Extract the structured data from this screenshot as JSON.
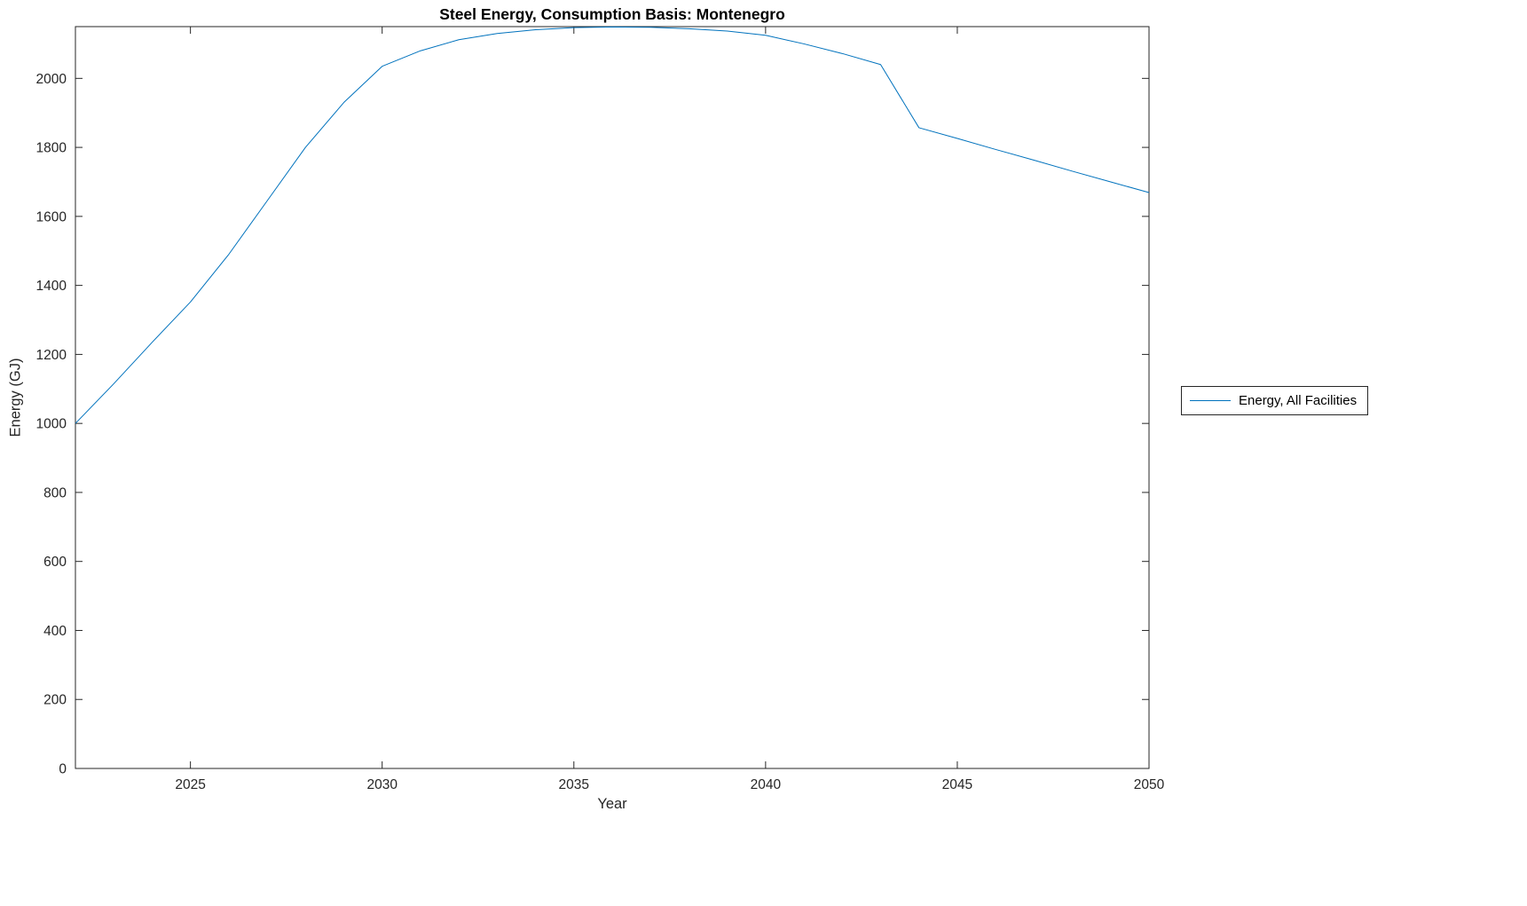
{
  "figure": {
    "background": "#ffffff"
  },
  "chart_data": {
    "type": "line",
    "title": "Steel Energy, Consumption Basis: Montenegro",
    "xlabel": "Year",
    "ylabel": "Energy (GJ)",
    "xlim": [
      2022,
      2050
    ],
    "ylim": [
      0,
      2150
    ],
    "xticks": [
      2025,
      2030,
      2035,
      2040,
      2045,
      2050
    ],
    "yticks": [
      0,
      200,
      400,
      600,
      800,
      1000,
      1200,
      1400,
      1600,
      1800,
      2000
    ],
    "grid": false,
    "legend_position": "right-outside",
    "axis_color": "#262626",
    "tick_length": 8,
    "x": [
      2022,
      2023,
      2024,
      2025,
      2026,
      2027,
      2028,
      2029,
      2030,
      2031,
      2032,
      2033,
      2034,
      2035,
      2036,
      2037,
      2038,
      2039,
      2040,
      2041,
      2042,
      2043,
      2044,
      2045,
      2046,
      2047,
      2048,
      2049,
      2050
    ],
    "series": [
      {
        "name": "Energy, All Facilities",
        "color": "#0072BD",
        "values": [
          1000,
          1115,
          1235,
          1352,
          1490,
          1645,
          1800,
          1930,
          2035,
          2080,
          2112,
          2130,
          2141,
          2147,
          2149,
          2148,
          2144,
          2137,
          2125,
          2100,
          2072,
          2040,
          1857,
          1826,
          1794,
          1763,
          1731,
          1700,
          1669
        ]
      }
    ]
  }
}
